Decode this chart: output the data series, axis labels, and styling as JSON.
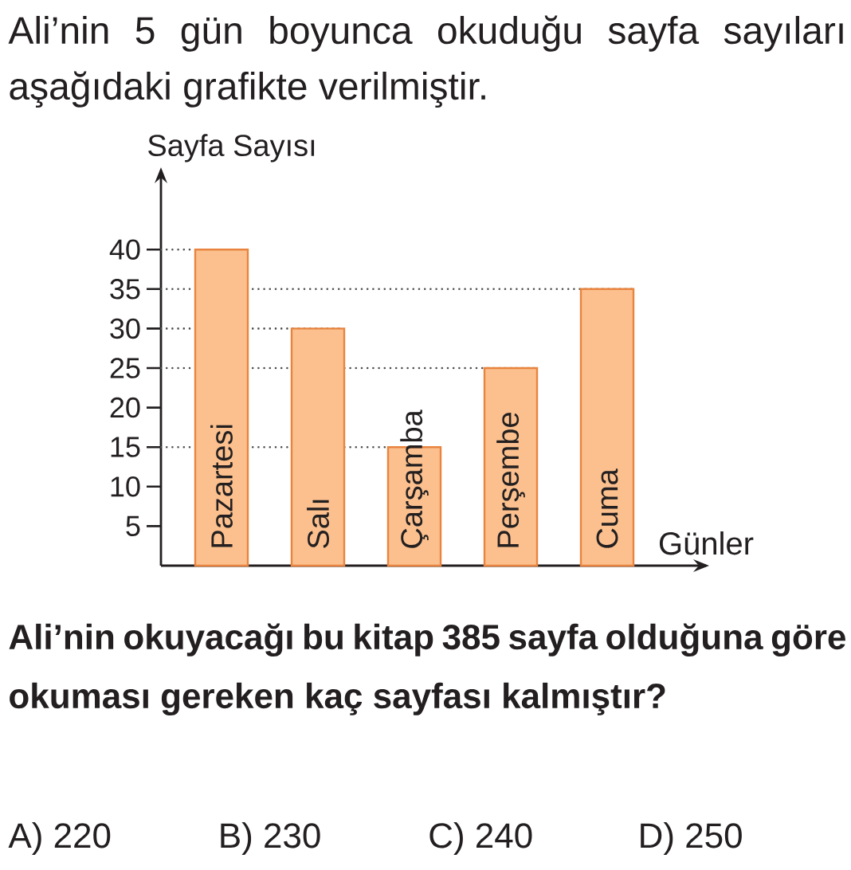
{
  "chart_data": {
    "type": "bar",
    "title": "Ali’nin 5 gün boyunca okuduğu sayfa sayıları aşağıdaki grafikte verilmiştir.",
    "xlabel": "Günler",
    "ylabel": "Sayfa Sayısı",
    "categories": [
      "Pazartesi",
      "Salı",
      "Çarşamba",
      "Perşembe",
      "Cuma"
    ],
    "values": [
      40,
      30,
      15,
      25,
      35
    ],
    "color": "#fbc08e",
    "ylim": [
      0,
      50
    ],
    "yticks": [
      5,
      10,
      15,
      20,
      25,
      30,
      35,
      40
    ],
    "ref_lines": [
      {
        "axis": "y",
        "value": 40,
        "color": "#4d4d4d",
        "line_style": "dotted"
      },
      {
        "axis": "y",
        "value": 35,
        "color": "#4d4d4d",
        "line_style": "dotted"
      },
      {
        "axis": "y",
        "value": 30,
        "color": "#4d4d4d",
        "line_style": "dotted"
      },
      {
        "axis": "y",
        "value": 25,
        "color": "#4d4d4d",
        "line_style": "dotted"
      },
      {
        "axis": "y",
        "value": 15,
        "color": "#4d4d4d",
        "line_style": "dotted"
      }
    ],
    "annotations": [
      "Ali’nin okuyacağı bu kitap 385 sayfa olduğuna göre okuması gereken kaç sayfası kalmıştır?",
      "A) 220",
      "B) 230",
      "C) 240",
      "D) 250"
    ]
  }
}
